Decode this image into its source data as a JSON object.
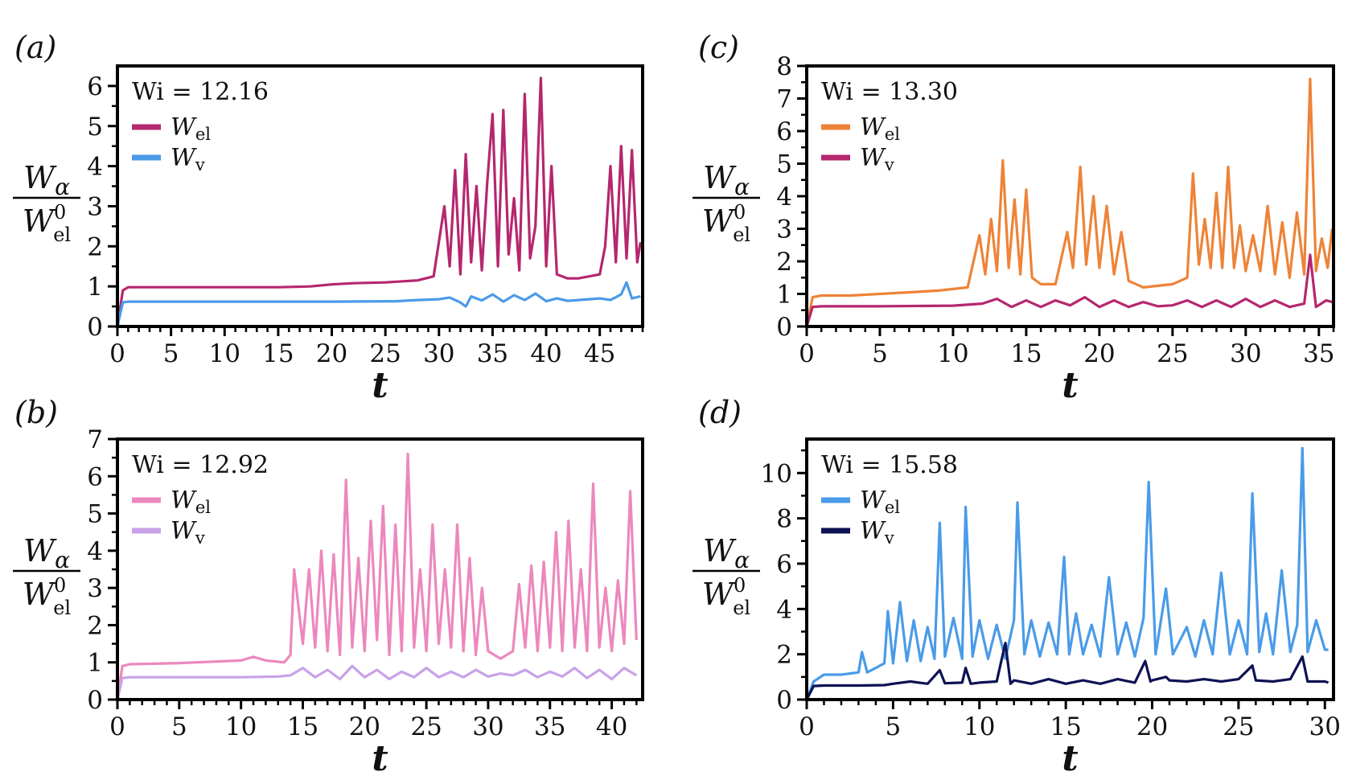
{
  "chart_data": [
    {
      "panel": "(a)",
      "type": "line",
      "annotation": "Wi = 12.16",
      "xlabel": "t",
      "ylabel": {
        "num_main": "W",
        "num_sub": "α",
        "den_main": "W",
        "den_sub": "el",
        "den_sup": "0"
      },
      "xlim": [
        0,
        49
      ],
      "ylim": [
        0,
        6.5
      ],
      "xticks": [
        0,
        5,
        10,
        15,
        20,
        25,
        30,
        35,
        40,
        45
      ],
      "yticks": [
        0,
        1,
        2,
        3,
        4,
        5,
        6
      ],
      "legend_position": "top-left",
      "series": [
        {
          "name_main": "W",
          "name_sub": "el",
          "color": "#b5276e",
          "x": [
            0,
            0.5,
            1,
            5,
            10,
            15,
            18,
            20,
            22,
            25,
            28,
            29.5,
            30.5,
            31,
            31.5,
            32,
            32.5,
            33,
            33.5,
            34,
            34.5,
            35,
            35.5,
            36,
            36.5,
            37,
            37.5,
            38,
            38.5,
            39,
            39.5,
            40,
            40.5,
            41,
            42,
            43,
            44,
            45,
            45.5,
            46,
            46.5,
            47,
            47.5,
            48,
            48.5,
            48.8
          ],
          "y": [
            0,
            0.9,
            0.98,
            0.98,
            0.98,
            0.98,
            1.0,
            1.05,
            1.08,
            1.1,
            1.15,
            1.25,
            3.0,
            1.5,
            3.9,
            1.3,
            4.3,
            1.6,
            3.5,
            1.4,
            3.6,
            5.3,
            1.5,
            5.4,
            1.8,
            3.2,
            1.4,
            5.8,
            1.7,
            2.5,
            6.2,
            1.5,
            4.0,
            1.3,
            1.2,
            1.2,
            1.25,
            1.3,
            2.0,
            4.0,
            1.6,
            4.5,
            1.7,
            4.4,
            1.6,
            2.1
          ]
        },
        {
          "name_main": "W",
          "name_sub": "v",
          "color": "#4a9be8",
          "x": [
            0,
            0.5,
            1,
            10,
            20,
            26,
            28,
            30,
            31,
            32,
            32.5,
            33,
            34,
            35,
            36,
            37,
            38,
            39,
            40,
            41,
            42,
            43,
            44,
            45,
            46,
            47,
            47.5,
            48,
            48.8
          ],
          "y": [
            0,
            0.6,
            0.62,
            0.62,
            0.62,
            0.63,
            0.66,
            0.68,
            0.72,
            0.6,
            0.5,
            0.75,
            0.65,
            0.8,
            0.62,
            0.78,
            0.66,
            0.82,
            0.63,
            0.7,
            0.64,
            0.66,
            0.68,
            0.7,
            0.66,
            0.8,
            1.1,
            0.7,
            0.75
          ]
        }
      ]
    },
    {
      "panel": "(b)",
      "type": "line",
      "annotation": "Wi = 12.92",
      "xlabel": "t",
      "ylabel": {
        "num_main": "W",
        "num_sub": "α",
        "den_main": "W",
        "den_sub": "el",
        "den_sup": "0"
      },
      "xlim": [
        0,
        42.5
      ],
      "ylim": [
        0,
        7
      ],
      "xticks": [
        0,
        5,
        10,
        15,
        20,
        25,
        30,
        35,
        40
      ],
      "yticks": [
        0,
        1,
        2,
        3,
        4,
        5,
        6,
        7
      ],
      "legend_position": "top-left",
      "series": [
        {
          "name_main": "W",
          "name_sub": "el",
          "color": "#ec88bd",
          "x": [
            0,
            0.4,
            1,
            5,
            10,
            11,
            12,
            13.5,
            14,
            14.3,
            15,
            15.5,
            16,
            16.5,
            17,
            17.5,
            18,
            18.5,
            19,
            19.5,
            20,
            20.5,
            21,
            21.5,
            22,
            22.5,
            23,
            23.5,
            24,
            24.5,
            25,
            25.5,
            26,
            26.5,
            27,
            27.5,
            28,
            28.5,
            29,
            29.5,
            30,
            31,
            32,
            32.5,
            33,
            33.5,
            34,
            34.5,
            35,
            35.5,
            36,
            36.5,
            37,
            37.5,
            38,
            38.5,
            39,
            39.5,
            40,
            40.5,
            41,
            41.5,
            42
          ],
          "y": [
            0,
            0.9,
            0.95,
            0.98,
            1.05,
            1.15,
            1.05,
            1.0,
            1.2,
            3.5,
            1.5,
            3.5,
            1.4,
            4.0,
            1.3,
            3.9,
            1.2,
            5.9,
            1.4,
            3.8,
            1.3,
            4.8,
            1.6,
            5.2,
            1.2,
            4.7,
            1.3,
            6.6,
            1.4,
            3.5,
            1.3,
            4.7,
            1.5,
            3.5,
            1.4,
            4.7,
            1.3,
            3.8,
            1.2,
            3.0,
            1.3,
            1.1,
            1.3,
            3.1,
            1.4,
            3.6,
            1.3,
            3.7,
            1.4,
            4.5,
            1.3,
            4.8,
            1.4,
            3.5,
            1.3,
            5.8,
            1.4,
            3.0,
            1.3,
            3.2,
            1.5,
            5.6,
            1.6
          ]
        },
        {
          "name_main": "W",
          "name_sub": "v",
          "color": "#c8a2e8",
          "x": [
            0,
            0.4,
            1,
            5,
            10,
            13,
            14,
            15,
            16,
            17,
            18,
            19,
            20,
            21,
            22,
            23,
            24,
            25,
            26,
            27,
            28,
            29,
            30,
            31,
            32,
            33,
            34,
            35,
            36,
            37,
            38,
            39,
            40,
            41,
            42
          ],
          "y": [
            0,
            0.58,
            0.6,
            0.6,
            0.6,
            0.62,
            0.65,
            0.85,
            0.6,
            0.8,
            0.55,
            0.9,
            0.6,
            0.8,
            0.55,
            0.75,
            0.6,
            0.85,
            0.6,
            0.75,
            0.6,
            0.8,
            0.62,
            0.7,
            0.65,
            0.8,
            0.6,
            0.75,
            0.62,
            0.85,
            0.58,
            0.8,
            0.55,
            0.85,
            0.65
          ]
        }
      ]
    },
    {
      "panel": "(c)",
      "type": "line",
      "annotation": "Wi = 13.30",
      "xlabel": "t",
      "ylabel": {
        "num_main": "W",
        "num_sub": "α",
        "den_main": "W",
        "den_sub": "el",
        "den_sup": "0"
      },
      "xlim": [
        0,
        36
      ],
      "ylim": [
        0,
        8
      ],
      "xticks": [
        0,
        5,
        10,
        15,
        20,
        25,
        30,
        35
      ],
      "yticks": [
        0,
        1,
        2,
        3,
        4,
        5,
        6,
        7,
        8
      ],
      "legend_position": "top-left",
      "series": [
        {
          "name_main": "W",
          "name_sub": "el",
          "color": "#ee8338",
          "x": [
            0,
            0.4,
            1,
            3,
            5,
            7,
            9,
            11,
            11.8,
            12.2,
            12.6,
            13,
            13.4,
            13.8,
            14.2,
            14.6,
            15,
            15.4,
            16,
            17,
            17.8,
            18.2,
            18.7,
            19.1,
            19.6,
            20,
            20.5,
            21,
            21.5,
            22,
            23,
            25,
            26,
            26.4,
            26.8,
            27.2,
            27.6,
            28,
            28.4,
            28.8,
            29.2,
            29.6,
            30,
            30.5,
            31,
            31.5,
            32,
            32.5,
            33,
            33.5,
            34,
            34.4,
            34.8,
            35.2,
            35.6,
            35.9
          ],
          "y": [
            0,
            0.9,
            0.95,
            0.95,
            1.0,
            1.05,
            1.1,
            1.2,
            2.8,
            1.6,
            3.3,
            1.7,
            5.1,
            1.8,
            3.9,
            1.6,
            4.2,
            1.5,
            1.3,
            1.3,
            2.9,
            1.8,
            4.9,
            1.9,
            4.0,
            1.8,
            3.7,
            1.6,
            2.9,
            1.4,
            1.2,
            1.3,
            1.5,
            4.7,
            1.9,
            3.3,
            1.8,
            4.1,
            1.8,
            4.9,
            1.8,
            3.1,
            1.7,
            2.8,
            1.7,
            3.7,
            1.6,
            3.2,
            1.5,
            3.5,
            1.6,
            7.6,
            1.7,
            2.7,
            1.8,
            3.0
          ]
        },
        {
          "name_main": "W",
          "name_sub": "v",
          "color": "#b5276e",
          "x": [
            0,
            0.4,
            1,
            5,
            10,
            12,
            13,
            14,
            15,
            16,
            17,
            18,
            19,
            20,
            21,
            22,
            23,
            24,
            25,
            26,
            27,
            28,
            29,
            30,
            31,
            32,
            33,
            34,
            34.4,
            34.8,
            35.5,
            35.9
          ],
          "y": [
            0,
            0.6,
            0.62,
            0.62,
            0.64,
            0.7,
            0.85,
            0.6,
            0.8,
            0.6,
            0.8,
            0.65,
            0.9,
            0.6,
            0.8,
            0.6,
            0.75,
            0.62,
            0.65,
            0.8,
            0.6,
            0.8,
            0.6,
            0.85,
            0.6,
            0.8,
            0.6,
            0.7,
            2.2,
            0.6,
            0.8,
            0.75
          ]
        }
      ]
    },
    {
      "panel": "(d)",
      "type": "line",
      "annotation": "Wi = 15.58",
      "xlabel": "t",
      "ylabel": {
        "num_main": "W",
        "num_sub": "α",
        "den_main": "W",
        "den_sub": "el",
        "den_sup": "0"
      },
      "xlim": [
        0,
        30.5
      ],
      "ylim": [
        0,
        11.5
      ],
      "xticks": [
        0,
        5,
        10,
        15,
        20,
        25,
        30
      ],
      "yticks": [
        0,
        2,
        4,
        6,
        8,
        10
      ],
      "legend_position": "top-left",
      "series": [
        {
          "name_main": "W",
          "name_sub": "el",
          "color": "#4a9be8",
          "x": [
            0,
            0.4,
            1,
            2,
            3,
            3.2,
            3.5,
            4,
            4.5,
            4.7,
            5,
            5.4,
            5.8,
            6.2,
            6.6,
            7,
            7.4,
            7.7,
            8,
            8.5,
            9,
            9.2,
            9.6,
            10,
            10.5,
            11,
            11.5,
            12,
            12.2,
            12.6,
            13,
            13.5,
            14,
            14.5,
            14.9,
            15.2,
            15.6,
            16,
            16.5,
            17,
            17.5,
            18,
            18.5,
            19,
            19.5,
            19.8,
            20.2,
            20.8,
            21.2,
            22,
            22.5,
            23,
            23.5,
            24,
            24.5,
            25,
            25.5,
            25.8,
            26.2,
            26.6,
            27,
            27.5,
            28,
            28.4,
            28.7,
            29,
            29.5,
            30,
            30.2
          ],
          "y": [
            0,
            0.8,
            1.1,
            1.1,
            1.2,
            2.1,
            1.2,
            1.4,
            1.6,
            3.9,
            1.6,
            4.3,
            1.7,
            3.5,
            1.7,
            3.2,
            1.8,
            7.8,
            1.9,
            3.6,
            1.8,
            8.5,
            1.9,
            3.5,
            1.8,
            3.3,
            1.8,
            3.5,
            8.7,
            2.0,
            3.5,
            1.9,
            3.4,
            2.0,
            6.3,
            2.0,
            3.8,
            2.0,
            3.3,
            1.9,
            5.4,
            2.0,
            3.4,
            1.9,
            3.6,
            9.6,
            2.0,
            4.9,
            2.0,
            3.2,
            1.9,
            3.5,
            2.0,
            5.6,
            2.0,
            3.5,
            2.0,
            9.1,
            2.1,
            3.8,
            2.0,
            5.7,
            2.1,
            3.3,
            11.1,
            2.1,
            3.5,
            2.2,
            2.2
          ]
        },
        {
          "name_main": "W",
          "name_sub": "v",
          "color": "#0d1254",
          "x": [
            0,
            0.4,
            1,
            3,
            4.5,
            5,
            6,
            7,
            7.7,
            8,
            9,
            9.2,
            9.5,
            10,
            11,
            11.5,
            11.8,
            12,
            13,
            14,
            15,
            16,
            17,
            18,
            19,
            19.6,
            19.9,
            20,
            20.8,
            21,
            22,
            23,
            24,
            25,
            25.8,
            26,
            27,
            28,
            28.7,
            29,
            30,
            30.2
          ],
          "y": [
            0,
            0.6,
            0.62,
            0.62,
            0.64,
            0.7,
            0.8,
            0.7,
            1.3,
            0.72,
            0.75,
            1.4,
            0.7,
            0.75,
            0.8,
            2.5,
            0.7,
            0.85,
            0.7,
            0.9,
            0.7,
            0.85,
            0.7,
            0.9,
            0.75,
            1.7,
            0.8,
            0.85,
            1.0,
            0.85,
            0.8,
            0.9,
            0.8,
            0.9,
            1.5,
            0.85,
            0.8,
            0.9,
            1.9,
            0.8,
            0.8,
            0.75
          ]
        }
      ]
    }
  ]
}
